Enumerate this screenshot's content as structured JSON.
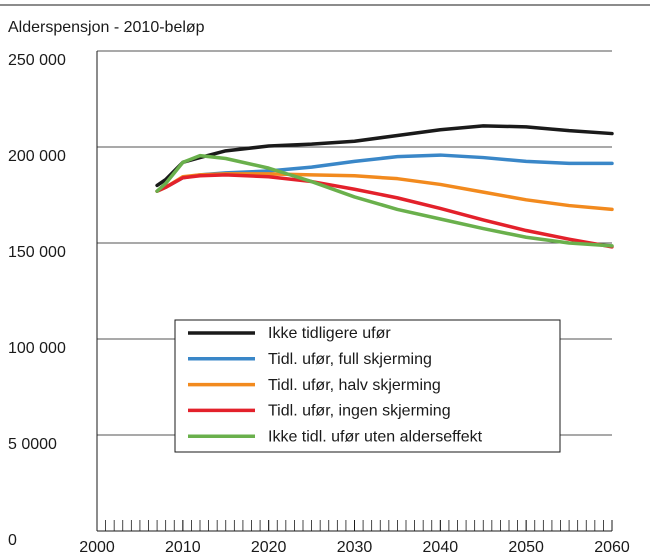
{
  "chart_data": {
    "type": "line",
    "title": "Alderspensjon - 2010-beløp",
    "x": [
      2007,
      2008,
      2010,
      2012,
      2015,
      2020,
      2025,
      2030,
      2035,
      2040,
      2045,
      2050,
      2055,
      2060
    ],
    "series": [
      {
        "name": "Ikke tidligere ufør",
        "color": "#1a1a1a",
        "values": [
          180000,
          183000,
          192000,
          194500,
          198000,
          200500,
          201500,
          203000,
          206000,
          209000,
          211000,
          210500,
          208500,
          207000
        ]
      },
      {
        "name": "Tidl. ufør, full skjerming",
        "color": "#3a87c8",
        "values": [
          177000,
          179000,
          184000,
          185500,
          186500,
          187500,
          189500,
          192500,
          195000,
          195800,
          194500,
          192500,
          191500,
          191500
        ]
      },
      {
        "name": "Tidl. ufør, halv skjerming",
        "color": "#f28a1e",
        "values": [
          177000,
          179000,
          184500,
          185500,
          186000,
          186000,
          185500,
          185000,
          183500,
          180500,
          176500,
          172500,
          169500,
          167500
        ]
      },
      {
        "name": "Tidl. ufør, ingen skjerming",
        "color": "#e3212b",
        "values": [
          177000,
          179000,
          184000,
          185000,
          185500,
          184500,
          182000,
          178000,
          173500,
          168000,
          162000,
          156500,
          152000,
          148000
        ]
      },
      {
        "name": "Ikke tidl. ufør uten alderseffekt",
        "color": "#6ab04c",
        "values": [
          177000,
          181000,
          192000,
          195500,
          194000,
          189000,
          182000,
          174000,
          167500,
          162500,
          157500,
          153000,
          150000,
          148500
        ]
      }
    ],
    "xlim": [
      2000,
      2060
    ],
    "xticks": [
      2000,
      2010,
      2020,
      2030,
      2040,
      2050,
      2060
    ],
    "ylim": [
      0,
      250000
    ],
    "yticks": [
      {
        "value": 0,
        "label": "0"
      },
      {
        "value": 50000,
        "label": "5 0000"
      },
      {
        "value": 100000,
        "label": "100 000"
      },
      {
        "value": 150000,
        "label": "150 000"
      },
      {
        "value": 200000,
        "label": "200 000"
      },
      {
        "value": 250000,
        "label": "250 000"
      }
    ],
    "grid": true
  }
}
